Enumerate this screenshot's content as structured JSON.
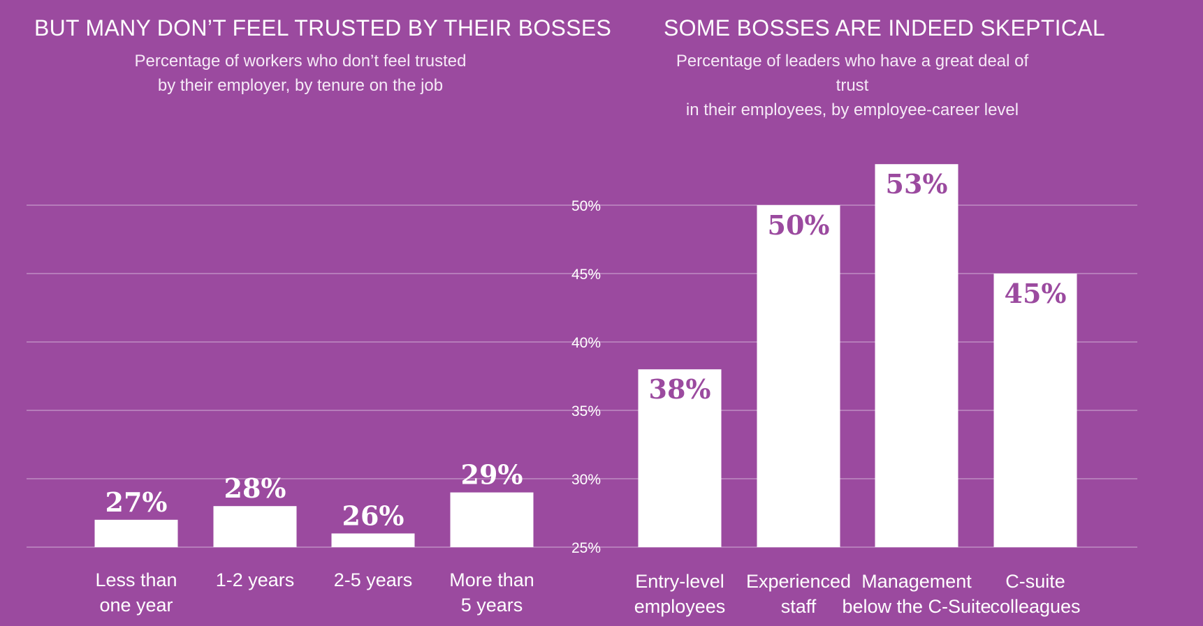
{
  "chart_data": [
    {
      "type": "bar",
      "title": "BUT MANY DON’T FEEL TRUSTED BY THEIR BOSSES",
      "subtitle": [
        "Percentage of workers who don’t feel trusted",
        "by their employer, by tenure on the job"
      ],
      "categories": [
        [
          "Less than",
          "one year"
        ],
        [
          "1-2 years"
        ],
        [
          "2-5 years"
        ],
        [
          "More than",
          "5 years"
        ]
      ],
      "values": [
        27,
        28,
        26,
        29
      ],
      "value_labels": [
        "27%",
        "28%",
        "26%",
        "29%"
      ],
      "ylim": [
        25,
        50
      ],
      "grid": true
    },
    {
      "type": "bar",
      "title": "SOME BOSSES ARE INDEED SKEPTICAL",
      "subtitle": [
        "Percentage of leaders who have a great deal of trust",
        "in their employees, by employee-career level"
      ],
      "categories": [
        [
          "Entry-level",
          "employees"
        ],
        [
          "Experienced",
          "staff"
        ],
        [
          "Management",
          "below the C-Suite"
        ],
        [
          "C-suite",
          "colleagues"
        ]
      ],
      "values": [
        38,
        50,
        53,
        45
      ],
      "value_labels": [
        "38%",
        "50%",
        "53%",
        "45%"
      ],
      "ylim": [
        25,
        50
      ],
      "grid": true
    }
  ],
  "y_axis": {
    "ticks": [
      25,
      30,
      35,
      40,
      45,
      50
    ],
    "tick_labels": [
      "25%",
      "30%",
      "35%",
      "40%",
      "45%",
      "50%"
    ]
  },
  "colors": {
    "background": "#9b4a9f",
    "bar": "#ffffff",
    "inside_label": "#9b4a9f",
    "grid": "#c79bcb"
  }
}
